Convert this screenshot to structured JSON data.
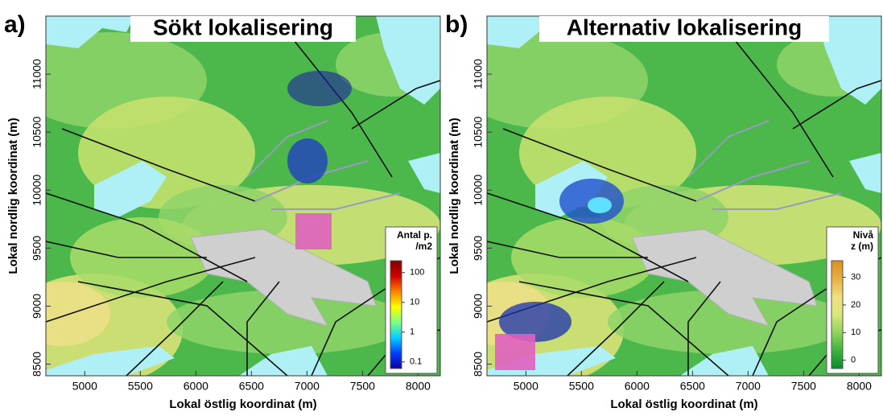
{
  "chart_data": [
    {
      "type": "map",
      "panel_label": "a)",
      "title": "Sökt lokalisering",
      "x_label": "Lokal östlig koordinat (m)",
      "y_label": "Lokal nordlig koordinat (m)",
      "xlim": [
        4650,
        8200
      ],
      "ylim": [
        8400,
        11500
      ],
      "xticks": [
        5000,
        5500,
        6000,
        6500,
        7000,
        7500,
        8000
      ],
      "yticks": [
        8500,
        9000,
        9500,
        10000,
        10500,
        11000
      ],
      "colorbar": {
        "title": [
          "Antal p.",
          "/m2"
        ],
        "lim": [
          0.06,
          250
        ],
        "log": true,
        "ticks": [
          0.1,
          1,
          10,
          100
        ],
        "colors": [
          "#0a00a0",
          "#0040ff",
          "#00d0ff",
          "#80ff80",
          "#ffff00",
          "#ff8000",
          "#d00000",
          "#800000"
        ]
      }
    },
    {
      "type": "map",
      "panel_label": "b)",
      "title": "Alternativ lokalisering",
      "x_label": "Lokal östlig koordinat (m)",
      "y_label": "Lokal nordlig koordinat (m)",
      "xlim": [
        4650,
        8200
      ],
      "ylim": [
        8400,
        11500
      ],
      "xticks": [
        5000,
        5500,
        6000,
        6500,
        7000,
        7500,
        8000
      ],
      "yticks": [
        8500,
        9000,
        9500,
        10000,
        10500,
        11000
      ],
      "colorbar": {
        "title": [
          "Nivå",
          "z (m)"
        ],
        "lim": [
          -3,
          36
        ],
        "log": false,
        "ticks": [
          0,
          10,
          20,
          30
        ],
        "colors": [
          "#0a8a2a",
          "#3cb43c",
          "#8fd45a",
          "#d8e878",
          "#f0e080",
          "#e8b040",
          "#d89020"
        ]
      }
    }
  ]
}
